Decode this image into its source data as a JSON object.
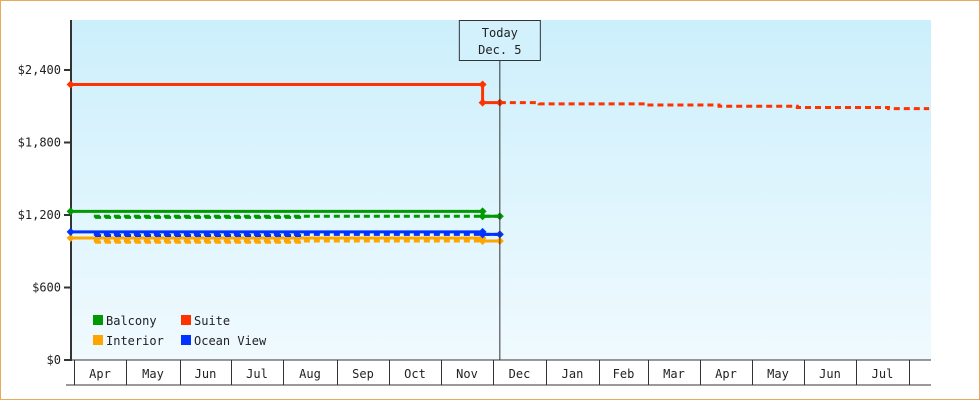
{
  "chart_data": {
    "type": "line",
    "title": "",
    "xlabel": "",
    "ylabel": "",
    "ylim": [
      0,
      2800
    ],
    "yticks": [
      {
        "value": 0,
        "label": "$0"
      },
      {
        "value": 600,
        "label": "$600"
      },
      {
        "value": 1200,
        "label": "$1,200"
      },
      {
        "value": 1800,
        "label": "$1,800"
      },
      {
        "value": 2400,
        "label": "$2,400"
      }
    ],
    "xtick_labels": [
      "Apr",
      "May",
      "Jun",
      "Jul",
      "Aug",
      "Sep",
      "Oct",
      "Nov",
      "Dec",
      "Jan",
      "Feb",
      "Mar",
      "Apr",
      "May",
      "Jun",
      "Jul"
    ],
    "today_marker": {
      "line1": "Today",
      "line2": "Dec. 5",
      "date": "Dec 5"
    },
    "legend_position": "bottom-left",
    "grid": false,
    "series": [
      {
        "name": "Balcony",
        "color": "#009900",
        "history": [
          [
            "Mar 30",
            1230
          ],
          [
            "Nov 25",
            1230
          ],
          [
            "Nov 25",
            1190
          ],
          [
            "Dec 5",
            1190
          ]
        ],
        "forecast": [
          [
            "Dec 5",
            1190
          ],
          [
            "Apr 12",
            1190
          ],
          [
            "Apr 12",
            1180
          ],
          [
            "Aug 13",
            1180
          ]
        ]
      },
      {
        "name": "Suite",
        "color": "#ff3300",
        "history": [
          [
            "Mar 30",
            2280
          ],
          [
            "Nov 25",
            2280
          ],
          [
            "Nov 25",
            2130
          ],
          [
            "Dec 5",
            2130
          ]
        ],
        "forecast": [
          [
            "Dec 5",
            2130
          ],
          [
            "Dec 28",
            2130
          ],
          [
            "Dec 28",
            2120
          ],
          [
            "Feb 28",
            2120
          ],
          [
            "Feb 28",
            2110
          ],
          [
            "Apr 12",
            2110
          ],
          [
            "Apr 12",
            2100
          ],
          [
            "May 28",
            2100
          ],
          [
            "May 28",
            2090
          ],
          [
            "Jul 20",
            2090
          ],
          [
            "Jul 20",
            2080
          ],
          [
            "Aug 13",
            2080
          ]
        ]
      },
      {
        "name": "Interior",
        "color": "#ffa500",
        "history": [
          [
            "Mar 30",
            1010
          ],
          [
            "Nov 25",
            1010
          ],
          [
            "Nov 25",
            985
          ],
          [
            "Dec 5",
            985
          ]
        ],
        "forecast": [
          [
            "Dec 5",
            985
          ],
          [
            "Apr 12",
            985
          ],
          [
            "Apr 12",
            975
          ],
          [
            "Aug 13",
            975
          ]
        ]
      },
      {
        "name": "Ocean View",
        "color": "#0033ff",
        "history": [
          [
            "Mar 30",
            1060
          ],
          [
            "Nov 25",
            1060
          ],
          [
            "Nov 25",
            1040
          ],
          [
            "Dec 5",
            1040
          ]
        ],
        "forecast": [
          [
            "Dec 5",
            1040
          ],
          [
            "Apr 12",
            1040
          ],
          [
            "Apr 12",
            1030
          ],
          [
            "Aug 13",
            1030
          ]
        ]
      }
    ]
  }
}
